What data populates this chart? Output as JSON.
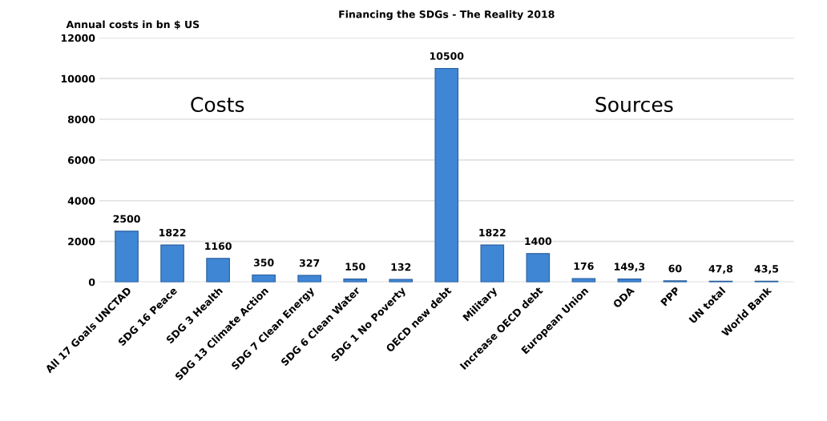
{
  "chart_data": {
    "type": "bar",
    "title": "Financing the SDGs - The Reality 2018",
    "ylabel": "Annual costs in bn $ US",
    "categories": [
      "All 17 Goals UNCTAD",
      "SDG 16 Peace",
      "SDG 3 Health",
      "SDG 13 Climate Action",
      "SDG 7 Clean Energy",
      "SDG 6 Clean Water",
      "SDG 1 No Poverty",
      "OECD new debt",
      "Military",
      "Increase OECD debt",
      "European Union",
      "ODA",
      "PPP",
      "UN total",
      "World Bank"
    ],
    "values": [
      2500,
      1822,
      1160,
      350,
      327,
      150,
      132,
      10500,
      1822,
      1400,
      176,
      149.3,
      60,
      47.8,
      43.5
    ],
    "value_labels": [
      "2500",
      "1822",
      "1160",
      "350",
      "327",
      "150",
      "132",
      "10500",
      "1822",
      "1400",
      "176",
      "149,3",
      "60",
      "47,8",
      "43,5"
    ],
    "color": "#3f86d4",
    "ylim": [
      0,
      12000
    ],
    "yticks": [
      0,
      2000,
      4000,
      6000,
      8000,
      10000,
      12000
    ],
    "grid": "y",
    "annotations": [
      "Costs",
      "Sources"
    ]
  }
}
